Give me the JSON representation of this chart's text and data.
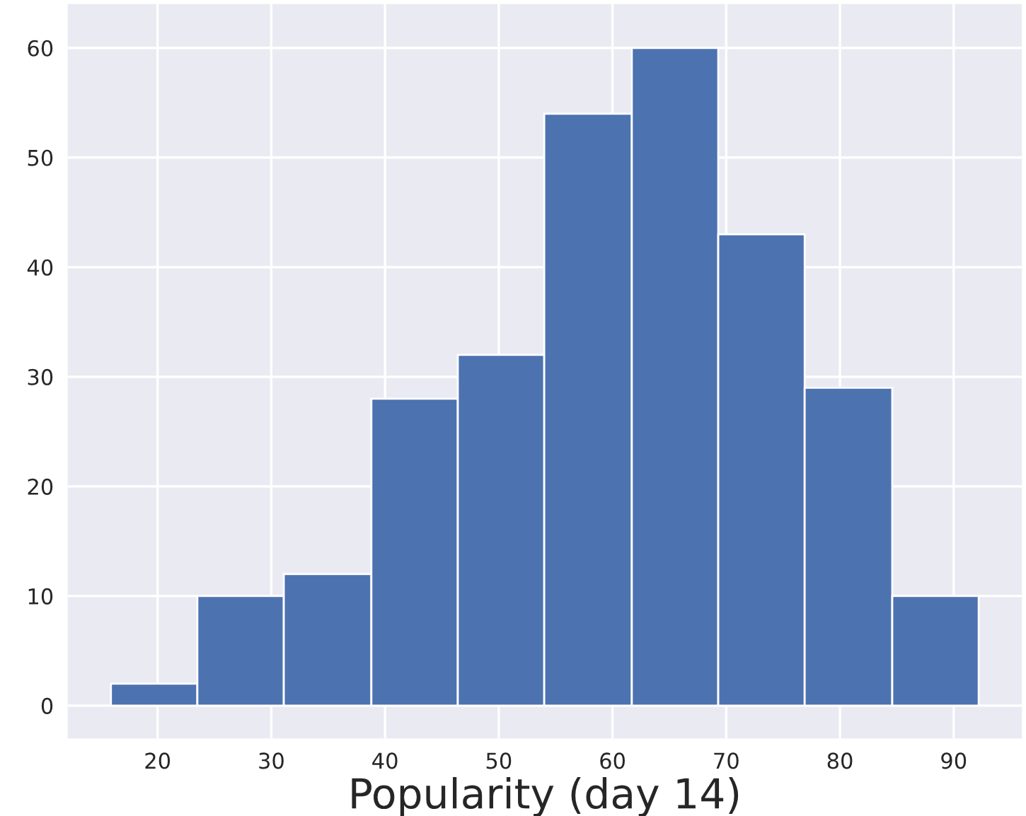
{
  "chart_data": {
    "type": "histogram",
    "xlabel": "Popularity (day 14)",
    "bins": [
      15.9,
      23.5,
      31.1,
      38.8,
      46.4,
      54.0,
      61.7,
      69.3,
      76.9,
      84.6,
      92.2
    ],
    "values": [
      2,
      10,
      12,
      28,
      32,
      54,
      60,
      43,
      29,
      10
    ],
    "color": "#4c72b0",
    "xlim": [
      12.1,
      96
    ],
    "xticks": [
      20,
      30,
      40,
      50,
      60,
      70,
      80,
      90
    ],
    "ylim": [
      -3,
      64
    ],
    "yticks": [
      0,
      10,
      20,
      30,
      40,
      50,
      60
    ],
    "grid": true
  }
}
